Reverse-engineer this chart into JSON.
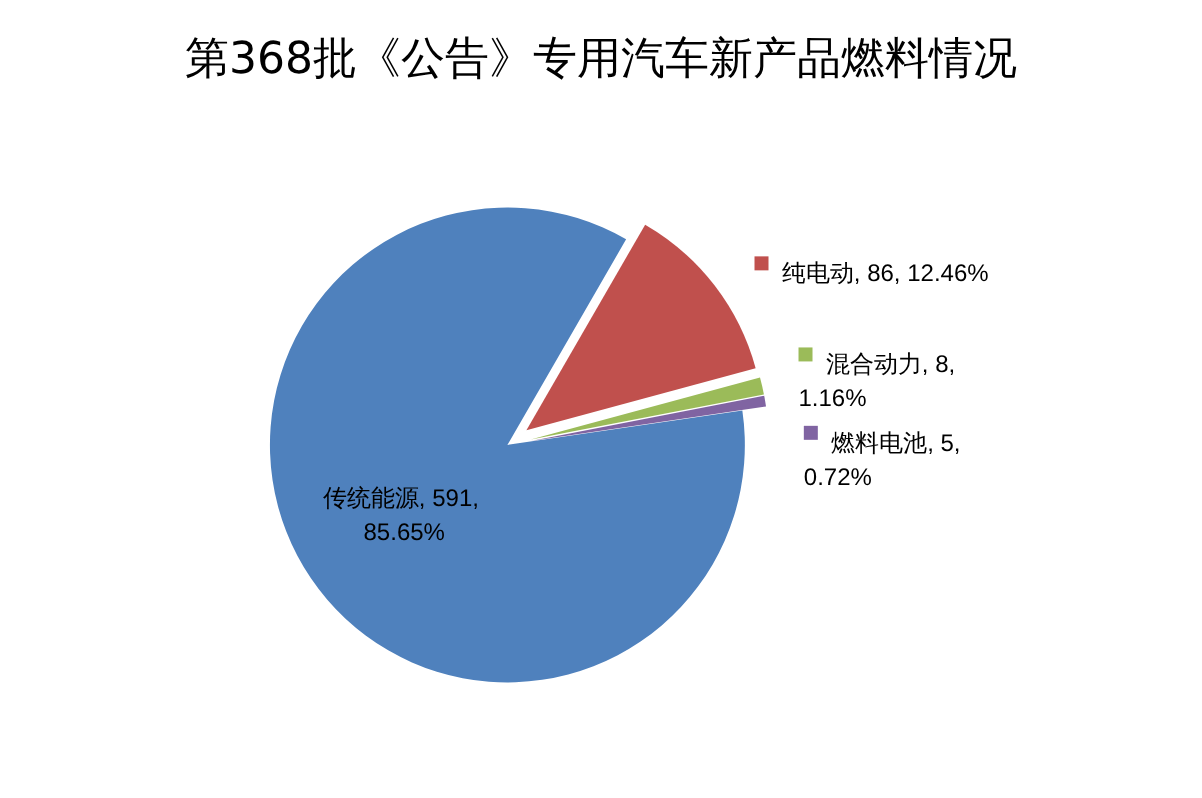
{
  "chart_data": {
    "type": "pie",
    "title": "第368批《公告》专用汽车新产品燃料情况",
    "categories": [
      "纯电动",
      "混合动力",
      "燃料电池",
      "传统能源"
    ],
    "values": [
      86,
      8,
      5,
      591
    ],
    "colors": [
      "#c0504d",
      "#9bbb59",
      "#8064a2",
      "#4f81bd"
    ],
    "data_labels": true,
    "value_labels": [
      "86, 12.46%",
      "8, 1.16%",
      "5, 0.72%",
      "591, 85.65%"
    ],
    "legend": "right"
  }
}
